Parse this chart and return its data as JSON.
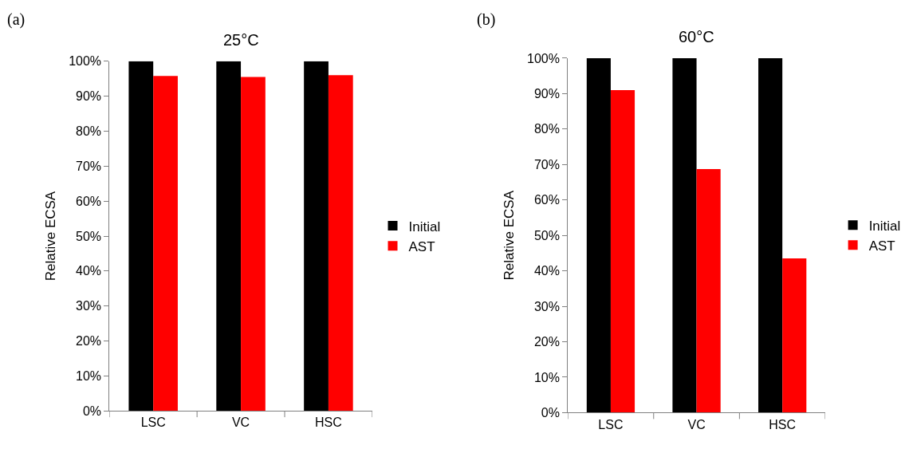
{
  "chart_data": [
    {
      "type": "bar",
      "title": "25°C",
      "ylabel": "Relative ECSA",
      "annotations": [
        "(a)"
      ],
      "categories": [
        "LSC",
        "VC",
        "HSC"
      ],
      "series": [
        {
          "name": "Initial",
          "color": "#000000",
          "values": [
            100,
            100,
            100
          ]
        },
        {
          "name": "AST",
          "color": "#ff0000",
          "values": [
            95.8,
            95.5,
            96.0
          ]
        }
      ],
      "ylim": [
        0,
        100
      ],
      "yticks": [
        {
          "value": 0,
          "label": "0%"
        },
        {
          "value": 10,
          "label": "10%"
        },
        {
          "value": 20,
          "label": "20%"
        },
        {
          "value": 30,
          "label": "30%"
        },
        {
          "value": 40,
          "label": "40%"
        },
        {
          "value": 50,
          "label": "50%"
        },
        {
          "value": 60,
          "label": "60%"
        },
        {
          "value": 70,
          "label": "70%"
        },
        {
          "value": 80,
          "label": "80%"
        },
        {
          "value": 90,
          "label": "90%"
        },
        {
          "value": 100,
          "label": "100%"
        }
      ],
      "legend": "right"
    },
    {
      "type": "bar",
      "title": "60°C",
      "ylabel": "Relative ECSA",
      "annotations": [
        "(b)"
      ],
      "categories": [
        "LSC",
        "VC",
        "HSC"
      ],
      "series": [
        {
          "name": "Initial",
          "color": "#000000",
          "values": [
            100,
            100,
            100
          ]
        },
        {
          "name": "AST",
          "color": "#ff0000",
          "values": [
            91.0,
            68.7,
            43.5
          ]
        }
      ],
      "ylim": [
        0,
        100
      ],
      "yticks": [
        {
          "value": 0,
          "label": "0%"
        },
        {
          "value": 10,
          "label": "10%"
        },
        {
          "value": 20,
          "label": "20%"
        },
        {
          "value": 30,
          "label": "30%"
        },
        {
          "value": 40,
          "label": "40%"
        },
        {
          "value": 50,
          "label": "50%"
        },
        {
          "value": 60,
          "label": "60%"
        },
        {
          "value": 70,
          "label": "70%"
        },
        {
          "value": 80,
          "label": "80%"
        },
        {
          "value": 90,
          "label": "90%"
        },
        {
          "value": 100,
          "label": "100%"
        }
      ],
      "legend": "right"
    }
  ]
}
